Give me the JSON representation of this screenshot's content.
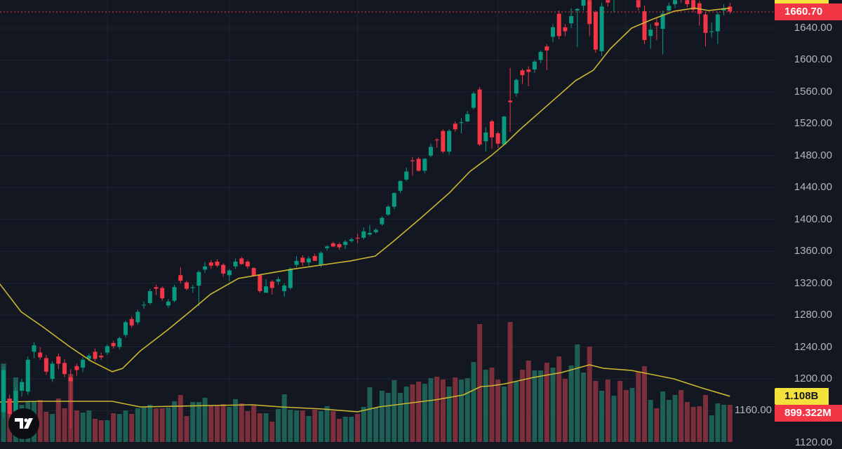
{
  "chart_data": {
    "type": "candlestick",
    "title": "",
    "y_axis": {
      "range": [
        1110,
        1688
      ],
      "ticks": [
        1640,
        1600,
        1560,
        1520,
        1480,
        1440,
        1400,
        1360,
        1320,
        1280,
        1240,
        1200,
        1160,
        1120
      ],
      "tick_labels": [
        "1640.00",
        "1600.00",
        "1560.00",
        "1520.00",
        "1480.00",
        "1440.00",
        "1400.00",
        "1360.00",
        "1320.00",
        "1280.00",
        "1240.00",
        "1200.00",
        "1160.00",
        "1120.00"
      ]
    },
    "grid": true,
    "vertical_grid_at_index": [
      17,
      37,
      58,
      81,
      102
    ],
    "colors": {
      "up": "#089981",
      "down": "#f23645",
      "ma": "#c9b72f",
      "up_volume": "#1d5e55",
      "down_volume": "#7c2f3b",
      "background": "#131722",
      "grid": "#1f2330"
    },
    "candles_ohlcv_millions": [
      [
        1158,
        1215,
        1150,
        1211,
        1900
      ],
      [
        1175,
        1180,
        1150,
        1156,
        1054
      ],
      [
        1160,
        1190,
        1155,
        1185,
        1564
      ],
      [
        1185,
        1200,
        1178,
        1196,
        900
      ],
      [
        1184,
        1228,
        1180,
        1224,
        990
      ],
      [
        1234,
        1246,
        1226,
        1242,
        986
      ],
      [
        1233,
        1240,
        1224,
        1227,
        1020
      ],
      [
        1226,
        1230,
        1205,
        1209,
        731
      ],
      [
        1200,
        1222,
        1196,
        1219,
        680
      ],
      [
        1228,
        1232,
        1212,
        1219,
        1054
      ],
      [
        1220,
        1225,
        1202,
        1206,
        816
      ],
      [
        1202,
        1212,
        1138,
        1197,
        1650
      ],
      [
        1216,
        1219,
        1204,
        1211,
        765
      ],
      [
        1214,
        1227,
        1208,
        1224,
        714
      ],
      [
        1225,
        1232,
        1222,
        1229,
        765
      ],
      [
        1234,
        1238,
        1222,
        1225,
        561
      ],
      [
        1229,
        1233,
        1224,
        1227,
        527
      ],
      [
        1233,
        1243,
        1230,
        1241,
        527
      ],
      [
        1245,
        1248,
        1238,
        1241,
        697
      ],
      [
        1240,
        1253,
        1237,
        1251,
        680
      ],
      [
        1255,
        1273,
        1252,
        1271,
        765
      ],
      [
        1275,
        1278,
        1264,
        1267,
        680
      ],
      [
        1271,
        1287,
        1268,
        1284,
        816
      ],
      [
        1292,
        1297,
        1288,
        1293,
        850
      ],
      [
        1295,
        1313,
        1293,
        1310,
        901
      ],
      [
        1315,
        1318,
        1305,
        1313,
        816
      ],
      [
        1314,
        1316,
        1298,
        1301,
        816
      ],
      [
        1292,
        1300,
        1289,
        1297,
        833
      ],
      [
        1298,
        1318,
        1296,
        1315,
        986
      ],
      [
        1330,
        1340,
        1320,
        1323,
        1139
      ],
      [
        1321,
        1323,
        1311,
        1313,
        629
      ],
      [
        1314,
        1318,
        1308,
        1315,
        969
      ],
      [
        1317,
        1336,
        1291,
        1334,
        969
      ],
      [
        1337,
        1347,
        1333,
        1341,
        1071
      ],
      [
        1346,
        1349,
        1338,
        1342,
        884
      ],
      [
        1347,
        1350,
        1340,
        1342,
        884
      ],
      [
        1343,
        1345,
        1328,
        1332,
        918
      ],
      [
        1330,
        1338,
        1322,
        1336,
        850
      ],
      [
        1341,
        1351,
        1338,
        1347,
        1037
      ],
      [
        1351,
        1353,
        1343,
        1344,
        935
      ],
      [
        1347,
        1349,
        1338,
        1341,
        748
      ],
      [
        1339,
        1340,
        1328,
        1329,
        884
      ],
      [
        1330,
        1331,
        1308,
        1310,
        697
      ],
      [
        1308,
        1325,
        1308,
        1316,
        697
      ],
      [
        1322,
        1324,
        1306,
        1314,
        493
      ],
      [
        1322,
        1328,
        1318,
        1325,
        799
      ],
      [
        1310,
        1320,
        1303,
        1317,
        1156
      ],
      [
        1314,
        1340,
        1312,
        1338,
        782
      ],
      [
        1343,
        1354,
        1340,
        1348,
        765
      ],
      [
        1352,
        1355,
        1342,
        1346,
        765
      ],
      [
        1346,
        1354,
        1342,
        1351,
        629
      ],
      [
        1354,
        1357,
        1348,
        1348,
        782
      ],
      [
        1343,
        1360,
        1340,
        1358,
        748
      ],
      [
        1364,
        1368,
        1361,
        1366,
        867
      ],
      [
        1370,
        1372,
        1365,
        1366,
        748
      ],
      [
        1369,
        1371,
        1362,
        1365,
        561
      ],
      [
        1368,
        1374,
        1363,
        1372,
        612
      ],
      [
        1373,
        1377,
        1371,
        1375,
        612
      ],
      [
        1377,
        1382,
        1370,
        1376,
        680
      ],
      [
        1377,
        1390,
        1375,
        1385,
        850
      ],
      [
        1381,
        1393,
        1379,
        1383,
        1326
      ],
      [
        1384,
        1389,
        1382,
        1387,
        833
      ],
      [
        1394,
        1404,
        1392,
        1402,
        1241
      ],
      [
        1406,
        1418,
        1404,
        1416,
        1190
      ],
      [
        1416,
        1434,
        1413,
        1433,
        1500
      ],
      [
        1436,
        1449,
        1433,
        1448,
        1190
      ],
      [
        1450,
        1465,
        1448,
        1460,
        1343
      ],
      [
        1474,
        1478,
        1455,
        1473,
        1394
      ],
      [
        1476,
        1478,
        1460,
        1461,
        1462
      ],
      [
        1461,
        1477,
        1458,
        1476,
        1411
      ],
      [
        1480,
        1495,
        1478,
        1491,
        1547
      ],
      [
        1500,
        1502,
        1490,
        1499,
        1581
      ],
      [
        1511,
        1513,
        1483,
        1485,
        1513
      ],
      [
        1485,
        1513,
        1481,
        1511,
        1343
      ],
      [
        1520,
        1523,
        1510,
        1513,
        1564
      ],
      [
        1521,
        1527,
        1508,
        1522,
        1513
      ],
      [
        1523,
        1536,
        1522,
        1532,
        1547
      ],
      [
        1540,
        1560,
        1538,
        1558,
        1938
      ],
      [
        1563,
        1566,
        1492,
        1494,
        2856
      ],
      [
        1498,
        1516,
        1485,
        1509,
        1751
      ],
      [
        1523,
        1525,
        1489,
        1503,
        1802
      ],
      [
        1508,
        1510,
        1490,
        1495,
        1513
      ],
      [
        1494,
        1530,
        1493,
        1529,
        1343
      ],
      [
        1549,
        1590,
        1510,
        1547,
        2907
      ],
      [
        1558,
        1577,
        1554,
        1575,
        1462
      ],
      [
        1587,
        1589,
        1570,
        1581,
        1751
      ],
      [
        1588,
        1592,
        1567,
        1585,
        1972
      ],
      [
        1588,
        1600,
        1584,
        1598,
        1734
      ],
      [
        1600,
        1612,
        1596,
        1610,
        1734
      ],
      [
        1617,
        1620,
        1587,
        1612,
        1921
      ],
      [
        1629,
        1645,
        1622,
        1641,
        1802
      ],
      [
        1658,
        1662,
        1626,
        1630,
        2074
      ],
      [
        1641,
        1645,
        1630,
        1636,
        1530
      ],
      [
        1646,
        1665,
        1640,
        1655,
        1853
      ],
      [
        1662,
        1665,
        1616,
        1664,
        2363
      ],
      [
        1668,
        1685,
        1662,
        1676,
        1683
      ],
      [
        1675,
        1692,
        1630,
        1645,
        2312
      ],
      [
        1660,
        1662,
        1609,
        1613,
        1479
      ],
      [
        1611,
        1672,
        1605,
        1667,
        1241
      ],
      [
        1675,
        1682,
        1667,
        1672,
        1513
      ],
      [
        1676,
        1690,
        1660,
        1678,
        1122
      ],
      [
        1690,
        1698,
        1680,
        1684,
        1479
      ],
      [
        1688,
        1695,
        1680,
        1683,
        1258
      ],
      [
        1680,
        1695,
        1676,
        1690,
        1309
      ],
      [
        1675,
        1680,
        1662,
        1666,
        1700
      ],
      [
        1661,
        1668,
        1620,
        1625,
        1836
      ],
      [
        1630,
        1645,
        1614,
        1638,
        1020
      ],
      [
        1647,
        1652,
        1625,
        1643,
        816
      ],
      [
        1639,
        1662,
        1607,
        1658,
        1224
      ],
      [
        1662,
        1672,
        1658,
        1668,
        1020
      ],
      [
        1670,
        1680,
        1665,
        1675,
        1139
      ],
      [
        1685,
        1695,
        1672,
        1676,
        1258
      ],
      [
        1675,
        1680,
        1666,
        1670,
        969
      ],
      [
        1675,
        1682,
        1660,
        1663,
        850
      ],
      [
        1671,
        1674,
        1643,
        1658,
        867
      ],
      [
        1657,
        1660,
        1617,
        1634,
        1139
      ],
      [
        1635,
        1647,
        1628,
        1636,
        646
      ],
      [
        1636,
        1660,
        1620,
        1657,
        935
      ],
      [
        1662,
        1670,
        1656,
        1665,
        901
      ],
      [
        1667,
        1672,
        1658,
        1660.7,
        899.322
      ]
    ],
    "price_ma_points": [
      [
        0,
        1319
      ],
      [
        2.9,
        1284
      ],
      [
        6.3,
        1266
      ],
      [
        10.9,
        1240
      ],
      [
        14.4,
        1222
      ],
      [
        17.8,
        1209
      ],
      [
        19.5,
        1213
      ],
      [
        22.4,
        1235
      ],
      [
        27,
        1262
      ],
      [
        30.5,
        1284
      ],
      [
        33.9,
        1306
      ],
      [
        38.5,
        1326
      ],
      [
        43.1,
        1332
      ],
      [
        47.7,
        1338
      ],
      [
        52.3,
        1343
      ],
      [
        56.9,
        1348
      ],
      [
        60.9,
        1354
      ],
      [
        63.8,
        1372
      ],
      [
        68.4,
        1402
      ],
      [
        73,
        1433
      ],
      [
        76.4,
        1460
      ],
      [
        79.9,
        1480
      ],
      [
        82.2,
        1495
      ],
      [
        84.5,
        1512
      ],
      [
        89.1,
        1543
      ],
      [
        93.7,
        1574
      ],
      [
        96.6,
        1587
      ],
      [
        99.4,
        1614
      ],
      [
        102.9,
        1640
      ],
      [
        106.3,
        1651
      ],
      [
        109.8,
        1661
      ],
      [
        113.2,
        1665
      ],
      [
        115.5,
        1662
      ],
      [
        119,
        1665
      ]
    ],
    "volume_ma_points_millions": [
      [
        0,
        969
      ],
      [
        6.3,
        986
      ],
      [
        10.9,
        986
      ],
      [
        17.8,
        986
      ],
      [
        19.5,
        935
      ],
      [
        22.4,
        850
      ],
      [
        33.9,
        884
      ],
      [
        40.8,
        901
      ],
      [
        45.4,
        850
      ],
      [
        52.3,
        799
      ],
      [
        58,
        731
      ],
      [
        61.5,
        850
      ],
      [
        66.1,
        935
      ],
      [
        70.7,
        1020
      ],
      [
        75.3,
        1139
      ],
      [
        78.2,
        1343
      ],
      [
        79.9,
        1360
      ],
      [
        82.2,
        1411
      ],
      [
        86.8,
        1564
      ],
      [
        91.4,
        1683
      ],
      [
        96,
        1870
      ],
      [
        98.3,
        1785
      ],
      [
        102.9,
        1734
      ],
      [
        105.2,
        1666
      ],
      [
        109.8,
        1530
      ],
      [
        114.4,
        1309
      ],
      [
        119,
        1108
      ]
    ],
    "last_price": 1660.7
  },
  "labels": {
    "last_price": "1660.70",
    "volume_ma": "1.108B",
    "volume_last": "899.322M"
  }
}
